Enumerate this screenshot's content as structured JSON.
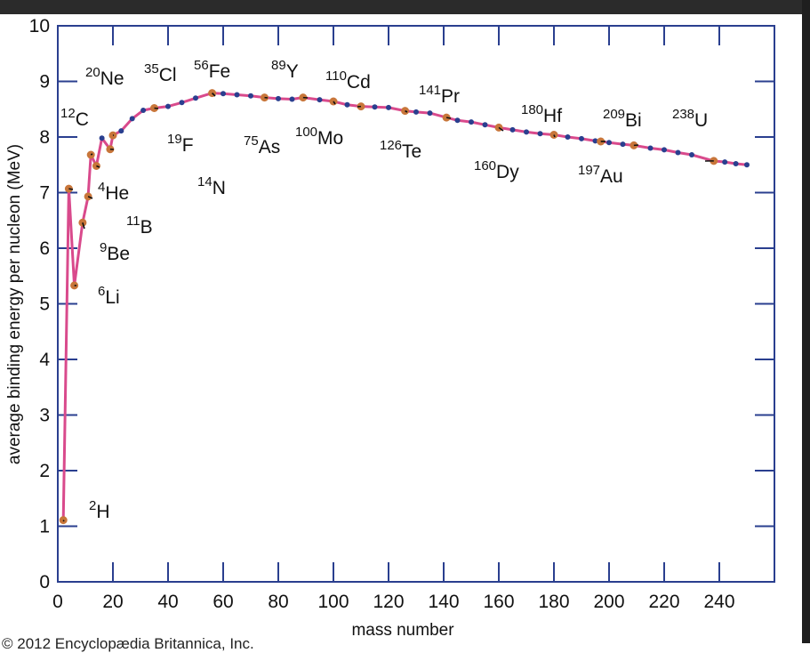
{
  "chart_data": {
    "type": "line",
    "title": "",
    "xlabel": "mass number",
    "ylabel": "average binding energy per nucleon (MeV)",
    "xlim": [
      0,
      260
    ],
    "ylim": [
      0,
      10
    ],
    "x_ticks": [
      0,
      20,
      40,
      60,
      80,
      100,
      120,
      140,
      160,
      180,
      200,
      220,
      240
    ],
    "y_ticks": [
      0,
      1,
      2,
      3,
      4,
      5,
      6,
      7,
      8,
      9,
      10
    ],
    "grid": false,
    "line_color": "#d94a8c",
    "point_color": "#2a3f8f",
    "labeled_point_color": "#c8763a",
    "series": [
      {
        "x": [
          2,
          4,
          6,
          9,
          11,
          12,
          14,
          16,
          19,
          20,
          23,
          27,
          31,
          35,
          40,
          45,
          50,
          56,
          60,
          65,
          70,
          75,
          80,
          85,
          89,
          95,
          100,
          105,
          110,
          115,
          120,
          126,
          130,
          135,
          141,
          145,
          150,
          155,
          160,
          165,
          170,
          175,
          180,
          185,
          190,
          195,
          197,
          200,
          205,
          209,
          215,
          220,
          225,
          230,
          238,
          242,
          246,
          250
        ],
        "y": [
          1.11,
          7.07,
          5.33,
          6.46,
          6.93,
          7.68,
          7.48,
          7.98,
          7.78,
          8.03,
          8.11,
          8.33,
          8.48,
          8.52,
          8.55,
          8.62,
          8.7,
          8.79,
          8.78,
          8.76,
          8.74,
          8.71,
          8.69,
          8.68,
          8.71,
          8.67,
          8.64,
          8.58,
          8.55,
          8.54,
          8.53,
          8.47,
          8.45,
          8.43,
          8.35,
          8.3,
          8.27,
          8.22,
          8.17,
          8.13,
          8.09,
          8.06,
          8.04,
          8.0,
          7.97,
          7.93,
          7.92,
          7.9,
          7.87,
          7.85,
          7.8,
          7.77,
          7.72,
          7.68,
          7.57,
          7.55,
          7.52,
          7.5
        ]
      }
    ],
    "isotopes": [
      {
        "mass": "2",
        "symbol": "H",
        "x": 2,
        "y": 1.11
      },
      {
        "mass": "4",
        "symbol": "He",
        "x": 4,
        "y": 7.07
      },
      {
        "mass": "6",
        "symbol": "Li",
        "x": 6,
        "y": 5.33
      },
      {
        "mass": "9",
        "symbol": "Be",
        "x": 9,
        "y": 6.46
      },
      {
        "mass": "11",
        "symbol": "B",
        "x": 11,
        "y": 6.93
      },
      {
        "mass": "12",
        "symbol": "C",
        "x": 12,
        "y": 7.68
      },
      {
        "mass": "14",
        "symbol": "N",
        "x": 14,
        "y": 7.48
      },
      {
        "mass": "19",
        "symbol": "F",
        "x": 19,
        "y": 7.78
      },
      {
        "mass": "20",
        "symbol": "Ne",
        "x": 20,
        "y": 8.03
      },
      {
        "mass": "35",
        "symbol": "Cl",
        "x": 35,
        "y": 8.52
      },
      {
        "mass": "56",
        "symbol": "Fe",
        "x": 56,
        "y": 8.79
      },
      {
        "mass": "75",
        "symbol": "As",
        "x": 75,
        "y": 8.71
      },
      {
        "mass": "89",
        "symbol": "Y",
        "x": 89,
        "y": 8.71
      },
      {
        "mass": "100",
        "symbol": "Mo",
        "x": 100,
        "y": 8.64
      },
      {
        "mass": "110",
        "symbol": "Cd",
        "x": 110,
        "y": 8.55
      },
      {
        "mass": "126",
        "symbol": "Te",
        "x": 126,
        "y": 8.47
      },
      {
        "mass": "141",
        "symbol": "Pr",
        "x": 141,
        "y": 8.35
      },
      {
        "mass": "160",
        "symbol": "Dy",
        "x": 160,
        "y": 8.17
      },
      {
        "mass": "180",
        "symbol": "Hf",
        "x": 180,
        "y": 8.04
      },
      {
        "mass": "197",
        "symbol": "Au",
        "x": 197,
        "y": 7.92
      },
      {
        "mass": "209",
        "symbol": "Bi",
        "x": 209,
        "y": 7.85
      },
      {
        "mass": "238",
        "symbol": "U",
        "x": 238,
        "y": 7.57
      }
    ]
  },
  "credit": "© 2012 Encyclopædia Britannica, Inc."
}
